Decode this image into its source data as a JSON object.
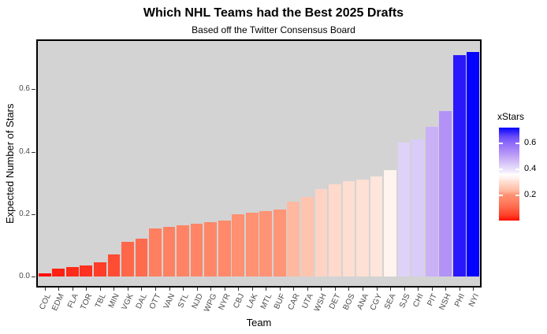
{
  "chart_data": {
    "type": "bar",
    "title": "Which NHL Teams had the Best 2025 Drafts",
    "subtitle": "Based off the Twitter Consensus Board",
    "xlabel": "Team",
    "ylabel": "Expected Number of Stars",
    "ylim": [
      0,
      0.75
    ],
    "yticks": [
      "0.0",
      "0.2",
      "0.4",
      "0.6"
    ],
    "ytick_values": [
      0.0,
      0.2,
      0.4,
      0.6
    ],
    "grid": false,
    "panel_background": "#D3D3D3",
    "categories": [
      "COL",
      "EDM",
      "FLA",
      "TOR",
      "TBL",
      "MIN",
      "VGK",
      "DAL",
      "OTT",
      "VAN",
      "STL",
      "NJD",
      "WPG",
      "NYR",
      "CBJ",
      "LAK",
      "MTL",
      "BUF",
      "CAR",
      "UTA",
      "WSH",
      "DET",
      "BOS",
      "ANA",
      "CGY",
      "SEA",
      "SJS",
      "CHI",
      "PIT",
      "NSH",
      "PHI",
      "NYI"
    ],
    "values": [
      0.01,
      0.025,
      0.03,
      0.035,
      0.045,
      0.07,
      0.11,
      0.12,
      0.155,
      0.16,
      0.165,
      0.17,
      0.175,
      0.18,
      0.2,
      0.205,
      0.21,
      0.215,
      0.24,
      0.255,
      0.28,
      0.295,
      0.305,
      0.31,
      0.32,
      0.34,
      0.43,
      0.44,
      0.48,
      0.53,
      0.71,
      0.72
    ],
    "bar_colors": [
      "#FF0D00",
      "#FF2212",
      "#FF2B1A",
      "#FF3120",
      "#FF3D28",
      "#FF4D33",
      "#FF674A",
      "#FF6B4E",
      "#FF7F60",
      "#FF8162",
      "#FF8364",
      "#FF8566",
      "#FF8768",
      "#FF896A",
      "#FF9071",
      "#FF9273",
      "#FF9375",
      "#FF9577",
      "#FFB9A0",
      "#FFC4AE",
      "#FFD3C4",
      "#FFDACC",
      "#FFDED2",
      "#FFE0D4",
      "#FFE5DB",
      "#FFF3ED",
      "#DED2F9",
      "#D9CCF8",
      "#CAB1F6",
      "#B392F8",
      "#2B17FB",
      "#0502FE"
    ],
    "legend": {
      "title": "xStars",
      "position": "right",
      "range": [
        0.01,
        0.72
      ],
      "midpoint": 0.365,
      "low_color": "#FF0D00",
      "mid_color": "#FFFFFF",
      "high_color": "#0502FE",
      "tick_labels": [
        "0.6",
        "0.4",
        "0.2"
      ],
      "tick_values": [
        0.6,
        0.4,
        0.2
      ],
      "gradient_stops": [
        [
          0,
          "#0502FE"
        ],
        [
          10,
          "#6B4DFA"
        ],
        [
          17,
          "#8F6CF9"
        ],
        [
          27,
          "#B392F8"
        ],
        [
          34,
          "#CAB1F6"
        ],
        [
          41,
          "#DED2F9"
        ],
        [
          48,
          "#F3EDFA"
        ],
        [
          50,
          "#FFFFFF"
        ],
        [
          54,
          "#FFF3ED"
        ],
        [
          59,
          "#FFDCCE"
        ],
        [
          68,
          "#FFB9A0"
        ],
        [
          72,
          "#FF9375"
        ],
        [
          79,
          "#FF8162"
        ],
        [
          86,
          "#FF674A"
        ],
        [
          94,
          "#FF4129"
        ],
        [
          100,
          "#FF0D00"
        ]
      ]
    }
  }
}
